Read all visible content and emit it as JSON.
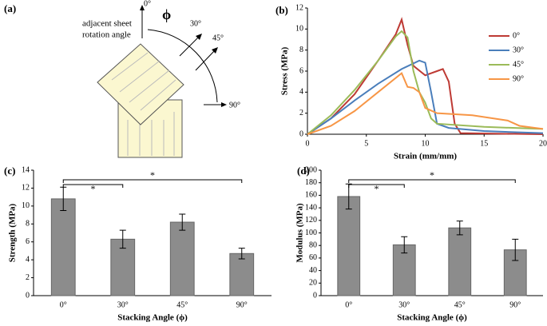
{
  "diagram": {
    "panel_label": "(a)",
    "top_angle": "0°",
    "caption": [
      "adjacent sheet",
      "rotation angle"
    ],
    "symbol": "ϕ",
    "angles": [
      "30°",
      "45°",
      "90°"
    ]
  },
  "chart_data": [
    {
      "type": "line",
      "panel_label": "(b)",
      "x_label": "Strain (mm/mm)",
      "y_label": "Stress (MPa)",
      "xlim": [
        0,
        20
      ],
      "xticks": [
        0,
        5,
        10,
        15,
        20
      ],
      "ylim": [
        0,
        12
      ],
      "yticks": [
        0,
        2,
        4,
        6,
        8,
        10,
        12
      ],
      "legend": "upper right",
      "series": [
        {
          "name": "0°",
          "color": "#be3a34",
          "x": [
            0,
            2,
            4,
            6,
            7.5,
            8,
            8.5,
            9,
            10,
            11,
            11.5,
            12,
            12.5,
            13,
            20
          ],
          "values": [
            0,
            1.5,
            3.8,
            7,
            9.5,
            10.9,
            8.5,
            6.5,
            5.6,
            6,
            6.2,
            5,
            1,
            0.1,
            0
          ]
        },
        {
          "name": "30°",
          "color": "#4a7ebb",
          "x": [
            0,
            2,
            4,
            6,
            8,
            9.5,
            10,
            10.5,
            11,
            12,
            15,
            20
          ],
          "values": [
            0,
            1.5,
            3.2,
            4.8,
            6.2,
            7,
            6.8,
            4,
            1,
            0.6,
            0.3,
            0.1
          ]
        },
        {
          "name": "45°",
          "color": "#9bbb59",
          "x": [
            0,
            2,
            4,
            6,
            7.5,
            8,
            8.5,
            9,
            9.5,
            10,
            10.5,
            11,
            15,
            20
          ],
          "values": [
            0,
            1.8,
            4.2,
            7,
            9.3,
            9.8,
            9.2,
            6,
            4,
            3,
            1.5,
            1,
            0.7,
            0.5
          ]
        },
        {
          "name": "90°",
          "color": "#f79646",
          "x": [
            0,
            2,
            4,
            6,
            8,
            8.5,
            9,
            9.5,
            10,
            11,
            14,
            17,
            18,
            20
          ],
          "values": [
            0,
            0.8,
            2.2,
            4,
            5.8,
            4.5,
            4.4,
            4,
            2.5,
            2,
            1.8,
            1.3,
            0.8,
            0.5
          ]
        }
      ]
    },
    {
      "type": "bar",
      "panel_label": "(c)",
      "x_label": "Stacking Angle (ϕ)",
      "y_label": "Strength (MPa)",
      "color": "#8c8c8c",
      "categories": [
        "0°",
        "30°",
        "45°",
        "90°"
      ],
      "values": [
        10.8,
        6.3,
        8.2,
        4.7
      ],
      "errors": [
        1.3,
        1.0,
        0.9,
        0.6
      ],
      "ylim": [
        0,
        14
      ],
      "yticks": [
        0,
        2,
        4,
        6,
        8,
        10,
        12,
        14
      ],
      "annotations": [
        {
          "text": "*",
          "from": "0°",
          "to": "30°"
        },
        {
          "text": "*",
          "from": "0°",
          "to": "90°"
        }
      ]
    },
    {
      "type": "bar",
      "panel_label": "(d)",
      "x_label": "Stacking Angle (ϕ)",
      "y_label": "Modulus (MPa)",
      "color": "#8c8c8c",
      "categories": [
        "0°",
        "30°",
        "45°",
        "90°"
      ],
      "values": [
        158,
        81,
        108,
        73
      ],
      "errors": [
        20,
        13,
        11,
        17
      ],
      "ylim": [
        0,
        200
      ],
      "yticks": [
        0,
        20,
        40,
        60,
        80,
        100,
        120,
        140,
        160,
        180,
        200
      ],
      "annotations": [
        {
          "text": "*",
          "from": "0°",
          "to": "30°"
        },
        {
          "text": "*",
          "from": "0°",
          "to": "90°"
        }
      ]
    }
  ]
}
